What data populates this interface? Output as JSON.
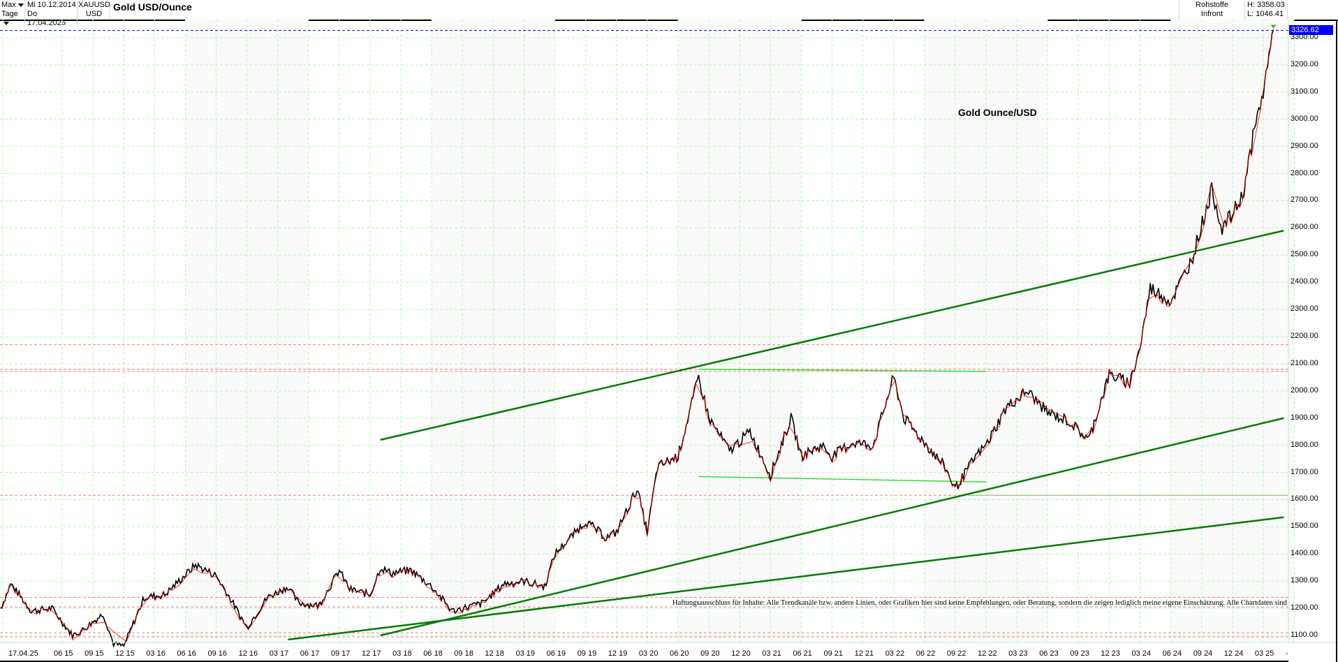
{
  "header": {
    "range_select": "Max",
    "interval_select": "Tage",
    "date_from": "Mi 10.12.2014",
    "date_to": "Do 17.04.2025",
    "symbol": "XAUUSD",
    "currency": "USD",
    "title": "Gold USD/Ounce",
    "category": "Rohstoffe",
    "source": "Infront Indikationen",
    "high": "H: 3358.03",
    "low": "L: 1046.41"
  },
  "chart_label": "Gold Ounce/USD",
  "last_price": "3326.62",
  "disclaimer": "Haftungsausschluss für Inhalte: Alle Trendkanäle bzw. andere Linien, oder Grafiken hier sind keine Empfehlungen, oder Beratung, sondern die zeigen lediglich meine eigene Einschätzung. Alle Chartdaten sind ohne Ge",
  "colors": {
    "grid": "#b6f5b6",
    "trendline": "#007a00",
    "horizontal_line": "#33dd33",
    "support_resistance": "#f08080",
    "last_price_line": "#0000cc",
    "last_price_badge": "#0000ff",
    "up_bar": "#000000",
    "down_bar": "#ff0000"
  },
  "chart_data": {
    "type": "line",
    "title": "Gold USD/Ounce",
    "subtitle": "Gold Ounce/USD",
    "xlabel": "",
    "ylabel": "USD",
    "ylim": [
      1050,
      3360
    ],
    "grid": true,
    "y_ticks": [
      "1100.00",
      "1200.00",
      "1300.00",
      "1400.00",
      "1500.00",
      "1600.00",
      "1700.00",
      "1800.00",
      "1900.00",
      "2000.00",
      "2100.00",
      "2200.00",
      "2300.00",
      "2400.00",
      "2500.00",
      "2600.00",
      "2700.00",
      "2800.00",
      "2900.00",
      "3000.00",
      "3100.00",
      "3200.00",
      "3300.00"
    ],
    "x_ticks": [
      "17.04.25",
      "06 15",
      "09 15",
      "12 15",
      "03 16",
      "06 16",
      "09 16",
      "12 16",
      "03 17",
      "06 17",
      "09 17",
      "12 17",
      "03 18",
      "06 18",
      "09 18",
      "12 18",
      "03 19",
      "06 19",
      "09 19",
      "12 19",
      "03 20",
      "06 20",
      "09 20",
      "12 20",
      "03 21",
      "06 21",
      "09 21",
      "12 21",
      "03 22",
      "06 22",
      "09 22",
      "12 22",
      "03 23",
      "06 23",
      "09 23",
      "12 23",
      "03 24",
      "06 24",
      "09 24",
      "12 24",
      "03 25",
      "-"
    ],
    "series": [
      {
        "name": "XAUUSD",
        "x": [
          "2014-12",
          "2015-01",
          "2015-03",
          "2015-05",
          "2015-07",
          "2015-08",
          "2015-10",
          "2015-11",
          "2015-12",
          "2016-02",
          "2016-04",
          "2016-07",
          "2016-09",
          "2016-10",
          "2016-12",
          "2017-02",
          "2017-04",
          "2017-05",
          "2017-07",
          "2017-09",
          "2017-10",
          "2017-12",
          "2018-01",
          "2018-02",
          "2018-04",
          "2018-06",
          "2018-08",
          "2018-09",
          "2018-11",
          "2019-01",
          "2019-03",
          "2019-05",
          "2019-06",
          "2019-09",
          "2019-11",
          "2019-12",
          "2020-02",
          "2020-03",
          "2020-04",
          "2020-06",
          "2020-08",
          "2020-09",
          "2020-11",
          "2021-01",
          "2021-03",
          "2021-05",
          "2021-06",
          "2021-08",
          "2021-09",
          "2021-11",
          "2022-01",
          "2022-03",
          "2022-04",
          "2022-06",
          "2022-08",
          "2022-09",
          "2022-11",
          "2022-12",
          "2023-02",
          "2023-04",
          "2023-05",
          "2023-06",
          "2023-08",
          "2023-10",
          "2023-12",
          "2024-02",
          "2024-03",
          "2024-04",
          "2024-06",
          "2024-08",
          "2024-10",
          "2024-11",
          "2024-12",
          "2025-01",
          "2025-02",
          "2025-03",
          "2025-04"
        ],
        "values": [
          1200,
          1290,
          1190,
          1200,
          1100,
          1120,
          1180,
          1070,
          1060,
          1240,
          1250,
          1360,
          1320,
          1260,
          1130,
          1240,
          1280,
          1220,
          1210,
          1340,
          1270,
          1250,
          1350,
          1330,
          1340,
          1280,
          1190,
          1200,
          1220,
          1290,
          1300,
          1280,
          1400,
          1520,
          1460,
          1480,
          1640,
          1480,
          1720,
          1760,
          2050,
          1900,
          1780,
          1850,
          1690,
          1900,
          1760,
          1800,
          1760,
          1810,
          1800,
          2050,
          1900,
          1810,
          1720,
          1640,
          1760,
          1800,
          1940,
          2000,
          1960,
          1920,
          1890,
          1820,
          2060,
          2030,
          2160,
          2380,
          2330,
          2480,
          2740,
          2600,
          2650,
          2720,
          2930,
          3100,
          3330
        ]
      }
    ],
    "trend_lines": [
      {
        "name": "upper-channel",
        "from": [
          "2018-01",
          1820
        ],
        "to": [
          "2025-05",
          2590
        ]
      },
      {
        "name": "middle-channel",
        "from": [
          "2018-01",
          1100
        ],
        "to": [
          "2025-05",
          1900
        ]
      },
      {
        "name": "lower-long",
        "from": [
          "2017-04",
          1085
        ],
        "to": [
          "2025-05",
          1535
        ]
      },
      {
        "name": "resistance-2020-2022",
        "from": [
          "2020-08",
          2080
        ],
        "to": [
          "2022-12",
          2072
        ]
      },
      {
        "name": "support-2020-2022",
        "from": [
          "2020-08",
          1685
        ],
        "to": [
          "2022-12",
          1665
        ]
      }
    ],
    "horizontal_levels": [
      2170,
      2080,
      2072,
      1616,
      1240,
      1205,
      1110,
      1095
    ],
    "last_value": 3326.62,
    "high": 3358.03,
    "low": 1046.41
  }
}
